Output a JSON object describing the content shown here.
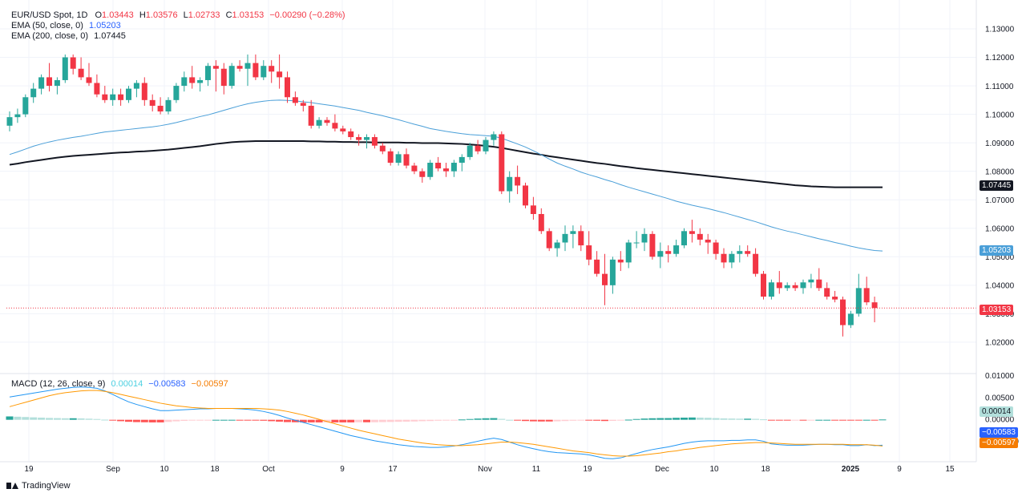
{
  "window": {
    "brand": "TradingView"
  },
  "symbol": {
    "name": "EUR/USD Spot",
    "interval": "1D"
  },
  "ohlc": {
    "o_label": "O",
    "o": "1.03443",
    "h_label": "H",
    "h": "1.03576",
    "l_label": "L",
    "l": "1.02733",
    "c_label": "C",
    "c": "1.03153",
    "change": "−0.00290 (−0.28%)"
  },
  "indicators": {
    "ema50_label": "EMA (50, close, 0)",
    "ema50_value": "1.05203",
    "ema200_label": "EMA (200, close, 0)",
    "ema200_value": "1.07445",
    "macd_label": "MACD (12, 26, close, 9)",
    "macd_hist": "0.00014",
    "macd_line": "−0.00583",
    "macd_signal": "−0.00597"
  },
  "price_tags": {
    "ema200": "1.07445",
    "ema50": "1.05203",
    "last": "1.03153",
    "macd_hist": "0.00014",
    "macd_line": "−0.00583",
    "macd_signal": "−0.00597"
  },
  "colors": {
    "up": "#26a69a",
    "down": "#f23645",
    "ema50": "#4a9fd8",
    "ema200": "#131722",
    "macd_line": "#2196f3",
    "signal_line": "#ff9800",
    "hist_up_strong": "#26a69a",
    "hist_up_weak": "#b2dfdb",
    "hist_down_strong": "#ff5252",
    "hist_down_weak": "#ffcdd2",
    "grid": "#f0f3fa"
  },
  "chart_data": {
    "type": "candlestick",
    "price_axis": {
      "ticks": [
        "1.13000",
        "1.12000",
        "1.11000",
        "1.10000",
        "1.09000",
        "1.08000",
        "1.07000",
        "1.06000",
        "1.05000",
        "1.04000",
        "1.03000",
        "1.02000"
      ],
      "range": [
        1.0135,
        1.1345
      ]
    },
    "macd_axis": {
      "ticks": [
        "0.01000",
        "0.00500",
        "0.00000",
        "−0.00500"
      ],
      "range": [
        -0.0094,
        0.0102
      ]
    },
    "time_axis": {
      "labels": [
        "19",
        "Sep",
        "10",
        "18",
        "Oct",
        "9",
        "17",
        "Nov",
        "11",
        "19",
        "Dec",
        "10",
        "18",
        "2025",
        "9",
        "15"
      ],
      "bold": [
        "2025"
      ]
    },
    "candles": [
      [
        1.096,
        1.101,
        1.094,
        1.099
      ],
      [
        1.099,
        1.102,
        1.097,
        1.1
      ],
      [
        1.1,
        1.107,
        1.099,
        1.106
      ],
      [
        1.106,
        1.111,
        1.104,
        1.109
      ],
      [
        1.109,
        1.114,
        1.107,
        1.113
      ],
      [
        1.113,
        1.118,
        1.108,
        1.11
      ],
      [
        1.11,
        1.113,
        1.107,
        1.112
      ],
      [
        1.112,
        1.121,
        1.111,
        1.12
      ],
      [
        1.12,
        1.121,
        1.114,
        1.116
      ],
      [
        1.116,
        1.12,
        1.112,
        1.113
      ],
      [
        1.113,
        1.118,
        1.11,
        1.111
      ],
      [
        1.111,
        1.114,
        1.106,
        1.107
      ],
      [
        1.107,
        1.11,
        1.104,
        1.105
      ],
      [
        1.105,
        1.109,
        1.103,
        1.107
      ],
      [
        1.107,
        1.109,
        1.103,
        1.105
      ],
      [
        1.105,
        1.11,
        1.104,
        1.109
      ],
      [
        1.109,
        1.112,
        1.106,
        1.111
      ],
      [
        1.111,
        1.113,
        1.103,
        1.105
      ],
      [
        1.105,
        1.107,
        1.101,
        1.103
      ],
      [
        1.103,
        1.106,
        1.1,
        1.101
      ],
      [
        1.101,
        1.106,
        1.1,
        1.105
      ],
      [
        1.105,
        1.111,
        1.104,
        1.11
      ],
      [
        1.11,
        1.115,
        1.108,
        1.113
      ],
      [
        1.113,
        1.117,
        1.109,
        1.111
      ],
      [
        1.111,
        1.113,
        1.108,
        1.112
      ],
      [
        1.112,
        1.118,
        1.11,
        1.117
      ],
      [
        1.117,
        1.119,
        1.108,
        1.116
      ],
      [
        1.116,
        1.118,
        1.107,
        1.11
      ],
      [
        1.11,
        1.118,
        1.109,
        1.117
      ],
      [
        1.117,
        1.119,
        1.115,
        1.116
      ],
      [
        1.116,
        1.121,
        1.11,
        1.118
      ],
      [
        1.118,
        1.121,
        1.112,
        1.113
      ],
      [
        1.113,
        1.119,
        1.112,
        1.117
      ],
      [
        1.117,
        1.119,
        1.111,
        1.115
      ],
      [
        1.115,
        1.121,
        1.109,
        1.113
      ],
      [
        1.113,
        1.115,
        1.104,
        1.106
      ],
      [
        1.106,
        1.108,
        1.103,
        1.104
      ],
      [
        1.104,
        1.105,
        1.101,
        1.103
      ],
      [
        1.103,
        1.105,
        1.095,
        1.096
      ],
      [
        1.096,
        1.099,
        1.095,
        1.098
      ],
      [
        1.098,
        1.099,
        1.096,
        1.097
      ],
      [
        1.097,
        1.1,
        1.094,
        1.095
      ],
      [
        1.095,
        1.096,
        1.093,
        1.094
      ],
      [
        1.094,
        1.095,
        1.091,
        1.092
      ],
      [
        1.092,
        1.093,
        1.089,
        1.091
      ],
      [
        1.091,
        1.093,
        1.088,
        1.092
      ],
      [
        1.092,
        1.093,
        1.088,
        1.089
      ],
      [
        1.089,
        1.09,
        1.086,
        1.087
      ],
      [
        1.087,
        1.088,
        1.082,
        1.083
      ],
      [
        1.083,
        1.087,
        1.082,
        1.086
      ],
      [
        1.086,
        1.088,
        1.081,
        1.082
      ],
      [
        1.082,
        1.083,
        1.079,
        1.08
      ],
      [
        1.08,
        1.081,
        1.076,
        1.078
      ],
      [
        1.078,
        1.084,
        1.077,
        1.083
      ],
      [
        1.083,
        1.085,
        1.08,
        1.081
      ],
      [
        1.081,
        1.083,
        1.078,
        1.08
      ],
      [
        1.08,
        1.084,
        1.078,
        1.083
      ],
      [
        1.083,
        1.086,
        1.08,
        1.085
      ],
      [
        1.085,
        1.09,
        1.084,
        1.089
      ],
      [
        1.089,
        1.091,
        1.086,
        1.087
      ],
      [
        1.087,
        1.092,
        1.086,
        1.091
      ],
      [
        1.091,
        1.094,
        1.089,
        1.093
      ],
      [
        1.093,
        1.094,
        1.072,
        1.073
      ],
      [
        1.073,
        1.08,
        1.069,
        1.078
      ],
      [
        1.078,
        1.082,
        1.072,
        1.075
      ],
      [
        1.075,
        1.076,
        1.067,
        1.068
      ],
      [
        1.068,
        1.071,
        1.063,
        1.065
      ],
      [
        1.065,
        1.067,
        1.058,
        1.059
      ],
      [
        1.059,
        1.06,
        1.052,
        1.053
      ],
      [
        1.053,
        1.056,
        1.05,
        1.055
      ],
      [
        1.055,
        1.061,
        1.052,
        1.058
      ],
      [
        1.058,
        1.061,
        1.053,
        1.059
      ],
      [
        1.059,
        1.061,
        1.052,
        1.054
      ],
      [
        1.054,
        1.059,
        1.047,
        1.049
      ],
      [
        1.049,
        1.052,
        1.043,
        1.044
      ],
      [
        1.044,
        1.051,
        1.033,
        1.04
      ],
      [
        1.04,
        1.05,
        1.037,
        1.049
      ],
      [
        1.049,
        1.052,
        1.045,
        1.048
      ],
      [
        1.048,
        1.056,
        1.046,
        1.055
      ],
      [
        1.055,
        1.059,
        1.053,
        1.055
      ],
      [
        1.055,
        1.06,
        1.052,
        1.058
      ],
      [
        1.058,
        1.059,
        1.049,
        1.05
      ],
      [
        1.05,
        1.055,
        1.046,
        1.052
      ],
      [
        1.052,
        1.054,
        1.048,
        1.051
      ],
      [
        1.051,
        1.056,
        1.05,
        1.054
      ],
      [
        1.054,
        1.06,
        1.053,
        1.059
      ],
      [
        1.059,
        1.063,
        1.055,
        1.058
      ],
      [
        1.058,
        1.06,
        1.054,
        1.056
      ],
      [
        1.056,
        1.058,
        1.051,
        1.055
      ],
      [
        1.055,
        1.056,
        1.049,
        1.051
      ],
      [
        1.051,
        1.053,
        1.046,
        1.048
      ],
      [
        1.048,
        1.052,
        1.046,
        1.051
      ],
      [
        1.051,
        1.054,
        1.048,
        1.052
      ],
      [
        1.052,
        1.054,
        1.05,
        1.051
      ],
      [
        1.051,
        1.053,
        1.043,
        1.044
      ],
      [
        1.044,
        1.045,
        1.035,
        1.036
      ],
      [
        1.036,
        1.042,
        1.035,
        1.041
      ],
      [
        1.041,
        1.045,
        1.037,
        1.039
      ],
      [
        1.039,
        1.041,
        1.038,
        1.04
      ],
      [
        1.04,
        1.041,
        1.038,
        1.039
      ],
      [
        1.039,
        1.042,
        1.037,
        1.041
      ],
      [
        1.041,
        1.044,
        1.039,
        1.042
      ],
      [
        1.042,
        1.046,
        1.038,
        1.039
      ],
      [
        1.039,
        1.041,
        1.035,
        1.036
      ],
      [
        1.036,
        1.038,
        1.034,
        1.035
      ],
      [
        1.035,
        1.036,
        1.022,
        1.026
      ],
      [
        1.026,
        1.031,
        1.025,
        1.03
      ],
      [
        1.03,
        1.044,
        1.029,
        1.039
      ],
      [
        1.039,
        1.043,
        1.033,
        1.034
      ],
      [
        1.034,
        1.036,
        1.027,
        1.032
      ]
    ],
    "ema50": [
      1.0859,
      1.0868,
      1.0878,
      1.0888,
      1.0896,
      1.0903,
      1.0909,
      1.0914,
      1.0919,
      1.0923,
      1.0928,
      1.0933,
      1.0938,
      1.0941,
      1.0944,
      1.0947,
      1.095,
      1.0953,
      1.0956,
      1.096,
      1.0965,
      1.0971,
      1.0978,
      1.0985,
      1.0992,
      1.0998,
      1.1006,
      1.1014,
      1.1022,
      1.103,
      1.1037,
      1.1042,
      1.1046,
      1.1049,
      1.105,
      1.1049,
      1.1047,
      1.1044,
      1.1041,
      1.1037,
      1.1033,
      1.1029,
      1.1024,
      1.1019,
      1.1014,
      1.1007,
      1.1001,
      1.0995,
      1.0988,
      1.0981,
      1.0973,
      1.0965,
      1.0958,
      1.095,
      1.0945,
      1.094,
      1.0936,
      1.0932,
      1.0929,
      1.0927,
      1.0925,
      1.0923,
      1.0916,
      1.0906,
      1.0896,
      1.0885,
      1.0872,
      1.0858,
      1.0843,
      1.0829,
      1.0818,
      1.0808,
      1.0797,
      1.0788,
      1.078,
      1.0771,
      1.0763,
      1.0753,
      1.0744,
      1.0736,
      1.0728,
      1.072,
      1.0712,
      1.0704,
      1.0695,
      1.0688,
      1.0681,
      1.0675,
      1.0669,
      1.0662,
      1.0655,
      1.0647,
      1.0639,
      1.0631,
      1.0623,
      1.0614,
      1.0605,
      1.0597,
      1.059,
      1.0584,
      1.0577,
      1.057,
      1.0563,
      1.0557,
      1.055,
      1.0544,
      1.0537,
      1.0531,
      1.0526,
      1.0522,
      1.052
    ],
    "ema200": [
      1.0823,
      1.0827,
      1.0832,
      1.0836,
      1.084,
      1.0844,
      1.0848,
      1.0851,
      1.0854,
      1.0856,
      1.0858,
      1.086,
      1.0862,
      1.0864,
      1.0866,
      1.0867,
      1.0869,
      1.087,
      1.0872,
      1.0874,
      1.0876,
      1.0879,
      1.0882,
      1.0885,
      1.0888,
      1.0892,
      1.0896,
      1.0899,
      1.0902,
      1.0904,
      1.0905,
      1.0906,
      1.0906,
      1.0906,
      1.0906,
      1.0906,
      1.0906,
      1.0906,
      1.0905,
      1.0905,
      1.0904,
      1.0904,
      1.0903,
      1.0903,
      1.0902,
      1.0902,
      1.0901,
      1.0901,
      1.0901,
      1.0901,
      1.09,
      1.09,
      1.0899,
      1.0899,
      1.0899,
      1.0898,
      1.0897,
      1.0896,
      1.0894,
      1.0892,
      1.0889,
      1.0886,
      1.0882,
      1.0877,
      1.0872,
      1.0867,
      1.0862,
      1.0858,
      1.0853,
      1.0849,
      1.0845,
      1.0841,
      1.0837,
      1.0833,
      1.0829,
      1.0826,
      1.0822,
      1.0818,
      1.0815,
      1.0811,
      1.0808,
      1.0805,
      1.0802,
      1.0799,
      1.0796,
      1.0793,
      1.079,
      1.0787,
      1.0784,
      1.0781,
      1.0778,
      1.0775,
      1.0772,
      1.0769,
      1.0766,
      1.0763,
      1.076,
      1.0757,
      1.0754,
      1.0751,
      1.0749,
      1.0747,
      1.0746,
      1.0745,
      1.0744,
      1.0744,
      1.0744,
      1.0744,
      1.0744,
      1.0744,
      1.0744
    ],
    "macd": [
      0.0052,
      0.0055,
      0.0058,
      0.0061,
      0.0064,
      0.0067,
      0.007,
      0.0072,
      0.0074,
      0.0075,
      0.0074,
      0.0072,
      0.0066,
      0.0058,
      0.0049,
      0.0041,
      0.0035,
      0.003,
      0.0025,
      0.0021,
      0.0021,
      0.0022,
      0.0023,
      0.0024,
      0.0025,
      0.0025,
      0.0026,
      0.0026,
      0.0026,
      0.0025,
      0.0024,
      0.0022,
      0.0019,
      0.0015,
      0.001,
      0.0004,
      -0.0001,
      -0.0006,
      -0.0011,
      -0.0016,
      -0.0021,
      -0.0026,
      -0.0031,
      -0.0036,
      -0.004,
      -0.0044,
      -0.0048,
      -0.0051,
      -0.0054,
      -0.0057,
      -0.0059,
      -0.0061,
      -0.0062,
      -0.0063,
      -0.0063,
      -0.0062,
      -0.006,
      -0.0057,
      -0.0053,
      -0.0049,
      -0.0045,
      -0.0042,
      -0.0045,
      -0.0051,
      -0.0057,
      -0.0062,
      -0.0066,
      -0.007,
      -0.0073,
      -0.0075,
      -0.0076,
      -0.0077,
      -0.0078,
      -0.008,
      -0.0084,
      -0.0088,
      -0.0089,
      -0.0087,
      -0.0082,
      -0.0077,
      -0.0072,
      -0.0068,
      -0.0065,
      -0.0062,
      -0.0058,
      -0.0054,
      -0.0051,
      -0.0049,
      -0.0048,
      -0.0048,
      -0.0048,
      -0.0047,
      -0.0047,
      -0.0046,
      -0.0046,
      -0.0049,
      -0.0055,
      -0.0057,
      -0.0058,
      -0.0058,
      -0.0058,
      -0.0057,
      -0.0056,
      -0.0056,
      -0.0057,
      -0.0057,
      -0.0059,
      -0.0059,
      -0.0057,
      -0.0059,
      -0.0058
    ],
    "signal": [
      0.003,
      0.0035,
      0.004,
      0.0045,
      0.005,
      0.0055,
      0.0059,
      0.0062,
      0.0064,
      0.0066,
      0.0067,
      0.0067,
      0.0065,
      0.0062,
      0.0058,
      0.0054,
      0.005,
      0.0046,
      0.0042,
      0.0038,
      0.0035,
      0.0032,
      0.003,
      0.0028,
      0.0027,
      0.0026,
      0.0026,
      0.0026,
      0.0026,
      0.0026,
      0.0026,
      0.0026,
      0.0025,
      0.0024,
      0.0022,
      0.0019,
      0.0015,
      0.0011,
      0.0006,
      0.0001,
      -0.0004,
      -0.0009,
      -0.0014,
      -0.0019,
      -0.0024,
      -0.0028,
      -0.0032,
      -0.0036,
      -0.004,
      -0.0044,
      -0.0047,
      -0.005,
      -0.0053,
      -0.0055,
      -0.0057,
      -0.0058,
      -0.0059,
      -0.0059,
      -0.0058,
      -0.0057,
      -0.0055,
      -0.0053,
      -0.0051,
      -0.0051,
      -0.0052,
      -0.0054,
      -0.0056,
      -0.0059,
      -0.0062,
      -0.0065,
      -0.0068,
      -0.0071,
      -0.0073,
      -0.0075,
      -0.0078,
      -0.008,
      -0.0082,
      -0.0083,
      -0.0083,
      -0.0082,
      -0.008,
      -0.0078,
      -0.0076,
      -0.0073,
      -0.0071,
      -0.0068,
      -0.0066,
      -0.0063,
      -0.0061,
      -0.0059,
      -0.0057,
      -0.0055,
      -0.0054,
      -0.0053,
      -0.0052,
      -0.0052,
      -0.0053,
      -0.0054,
      -0.0055,
      -0.0056,
      -0.0056,
      -0.0056,
      -0.0056,
      -0.0056,
      -0.0056,
      -0.0056,
      -0.0057,
      -0.0057,
      -0.0057,
      -0.0058,
      -0.006
    ]
  }
}
